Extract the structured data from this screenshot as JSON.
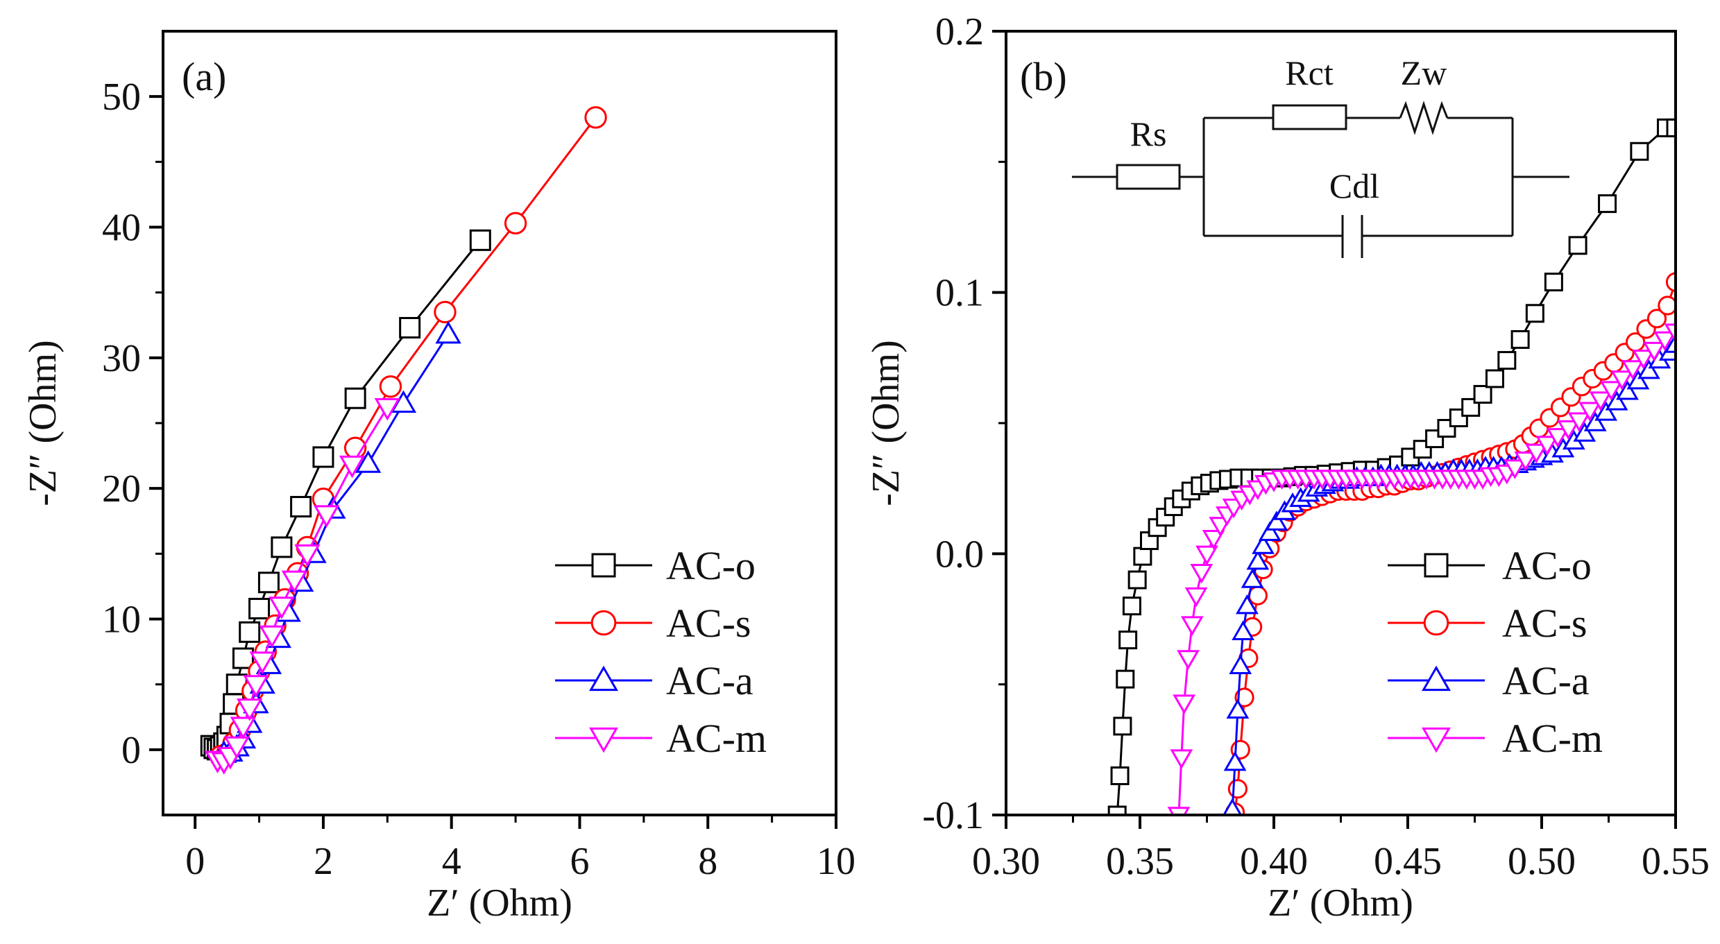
{
  "panels": [
    {
      "id": "a",
      "panel_label": "(a)",
      "xlabel": "Z′ (Ohm)",
      "ylabel": "-Z″ (Ohm)"
    },
    {
      "id": "b",
      "panel_label": "(b)",
      "xlabel": "Z′ (Ohm)",
      "ylabel": "-Z″ (Ohm)",
      "circuit": {
        "rs": "Rs",
        "rct": "Rct",
        "zw": "Zw",
        "cdl": "Cdl"
      }
    }
  ],
  "chart_data": [
    {
      "type": "line",
      "panel": "(a)",
      "xlabel": "Z′ (Ohm)",
      "ylabel": "-Z″ (Ohm)",
      "xlim": [
        -0.5,
        10
      ],
      "ylim": [
        -5,
        55
      ],
      "xticks": [
        0,
        2,
        4,
        6,
        8,
        10
      ],
      "yticks": [
        0,
        10,
        20,
        30,
        40,
        50
      ],
      "xtick_labels": [
        "0",
        "2",
        "4",
        "6",
        "8",
        "10"
      ],
      "ytick_labels": [
        "0",
        "10",
        "20",
        "30",
        "40",
        "50"
      ],
      "legend_position": "bottom-right",
      "series": [
        {
          "name": "AC-o",
          "color": "#000000",
          "marker": "square",
          "x": [
            0.25,
            0.3,
            0.35,
            0.4,
            0.45,
            0.5,
            0.55,
            0.6,
            0.65,
            0.75,
            0.85,
            1.0,
            1.15,
            1.35,
            1.65,
            2.0,
            2.5,
            3.35,
            4.45
          ],
          "y": [
            0.3,
            0.1,
            0.0,
            0.2,
            0.5,
            1.0,
            2.0,
            3.5,
            5.0,
            7.0,
            9.0,
            10.8,
            12.8,
            15.5,
            18.6,
            22.4,
            26.9,
            32.3,
            39.0
          ]
        },
        {
          "name": "AC-s",
          "color": "#ff0000",
          "marker": "circle",
          "x": [
            0.4,
            0.5,
            0.6,
            0.7,
            0.8,
            0.9,
            1.0,
            1.1,
            1.25,
            1.4,
            1.6,
            1.75,
            2.0,
            2.5,
            3.05,
            3.9,
            5.0,
            6.25
          ],
          "y": [
            -0.5,
            -0.3,
            0.5,
            1.5,
            3.0,
            4.5,
            6.0,
            7.5,
            9.5,
            11.5,
            13.5,
            15.5,
            19.2,
            23.1,
            27.8,
            33.5,
            40.3,
            48.4
          ]
        },
        {
          "name": "AC-a",
          "color": "#0000ff",
          "marker": "triangle-up",
          "x": [
            0.45,
            0.55,
            0.65,
            0.75,
            0.85,
            0.95,
            1.05,
            1.15,
            1.3,
            1.45,
            1.65,
            1.85,
            2.15,
            2.7,
            3.25,
            3.95
          ],
          "y": [
            -0.3,
            -0.2,
            0.2,
            0.8,
            2.0,
            3.5,
            5.0,
            6.5,
            8.5,
            10.5,
            12.8,
            15.0,
            18.4,
            21.9,
            26.5,
            31.8
          ]
        },
        {
          "name": "AC-m",
          "color": "#ff00ff",
          "marker": "triangle-down",
          "x": [
            0.35,
            0.45,
            0.55,
            0.65,
            0.75,
            0.85,
            0.95,
            1.05,
            1.2,
            1.35,
            1.55,
            1.75,
            2.05,
            2.45,
            3.0
          ],
          "y": [
            -0.8,
            -0.9,
            -0.5,
            0.3,
            1.8,
            3.2,
            5.0,
            6.8,
            8.8,
            11.0,
            13.0,
            15.0,
            18.0,
            21.8,
            26.2
          ]
        }
      ]
    },
    {
      "type": "line",
      "panel": "(b)",
      "xlabel": "Z′ (Ohm)",
      "ylabel": "-Z″ (Ohm)",
      "xlim": [
        0.3,
        0.55
      ],
      "ylim": [
        -0.1,
        0.2
      ],
      "xticks": [
        0.3,
        0.35,
        0.4,
        0.45,
        0.5,
        0.55
      ],
      "yticks": [
        -0.1,
        0.0,
        0.1,
        0.2
      ],
      "xtick_labels": [
        "0.30",
        "0.35",
        "0.40",
        "0.45",
        "0.50",
        "0.55"
      ],
      "ytick_labels": [
        "-0.1",
        "0.0",
        "0.1",
        "0.2"
      ],
      "legend_position": "bottom-right",
      "series": [
        {
          "name": "AC-o",
          "color": "#000000",
          "marker": "square",
          "x": [
            0.3415,
            0.3425,
            0.3435,
            0.3445,
            0.3455,
            0.347,
            0.349,
            0.351,
            0.3535,
            0.3565,
            0.3595,
            0.3625,
            0.3655,
            0.369,
            0.3725,
            0.376,
            0.3795,
            0.383,
            0.387,
            0.391,
            0.395,
            0.399,
            0.403,
            0.407,
            0.411,
            0.415,
            0.4195,
            0.424,
            0.4285,
            0.433,
            0.4375,
            0.442,
            0.4465,
            0.451,
            0.4555,
            0.46,
            0.4645,
            0.469,
            0.4735,
            0.478,
            0.4825,
            0.487,
            0.492,
            0.4975,
            0.5045,
            0.5135,
            0.5245,
            0.5365,
            0.5465,
            0.55
          ],
          "y": [
            -0.1,
            -0.085,
            -0.066,
            -0.048,
            -0.033,
            -0.02,
            -0.01,
            -0.001,
            0.005,
            0.01,
            0.014,
            0.018,
            0.021,
            0.024,
            0.026,
            0.027,
            0.028,
            0.0285,
            0.029,
            0.029,
            0.029,
            0.029,
            0.029,
            0.0295,
            0.03,
            0.03,
            0.0305,
            0.031,
            0.0315,
            0.032,
            0.032,
            0.033,
            0.034,
            0.037,
            0.04,
            0.044,
            0.048,
            0.052,
            0.056,
            0.061,
            0.067,
            0.074,
            0.082,
            0.092,
            0.104,
            0.118,
            0.134,
            0.154,
            0.163,
            0.163
          ]
        },
        {
          "name": "AC-s",
          "color": "#ff0000",
          "marker": "circle",
          "x": [
            0.3855,
            0.3865,
            0.3875,
            0.389,
            0.3905,
            0.392,
            0.394,
            0.396,
            0.3985,
            0.401,
            0.4035,
            0.406,
            0.409,
            0.412,
            0.415,
            0.418,
            0.421,
            0.424,
            0.427,
            0.43,
            0.433,
            0.436,
            0.439,
            0.442,
            0.445,
            0.448,
            0.451,
            0.454,
            0.457,
            0.46,
            0.463,
            0.466,
            0.469,
            0.472,
            0.475,
            0.478,
            0.481,
            0.484,
            0.487,
            0.49,
            0.493,
            0.496,
            0.499,
            0.503,
            0.507,
            0.511,
            0.515,
            0.519,
            0.523,
            0.527,
            0.531,
            0.535,
            0.539,
            0.543,
            0.547,
            0.55
          ],
          "y": [
            -0.099,
            -0.09,
            -0.075,
            -0.055,
            -0.04,
            -0.028,
            -0.016,
            -0.006,
            0.002,
            0.008,
            0.012,
            0.016,
            0.018,
            0.02,
            0.021,
            0.022,
            0.023,
            0.024,
            0.024,
            0.024,
            0.024,
            0.025,
            0.025,
            0.026,
            0.026,
            0.027,
            0.028,
            0.028,
            0.029,
            0.03,
            0.031,
            0.032,
            0.033,
            0.034,
            0.035,
            0.036,
            0.037,
            0.038,
            0.039,
            0.04,
            0.042,
            0.045,
            0.048,
            0.052,
            0.056,
            0.06,
            0.064,
            0.067,
            0.07,
            0.073,
            0.077,
            0.081,
            0.086,
            0.09,
            0.095,
            0.104
          ]
        },
        {
          "name": "AC-a",
          "color": "#0000ff",
          "marker": "triangle-up",
          "x": [
            0.3845,
            0.3855,
            0.3865,
            0.3875,
            0.3885,
            0.39,
            0.392,
            0.394,
            0.396,
            0.3985,
            0.401,
            0.404,
            0.407,
            0.41,
            0.413,
            0.416,
            0.419,
            0.422,
            0.425,
            0.428,
            0.431,
            0.434,
            0.437,
            0.44,
            0.443,
            0.446,
            0.449,
            0.452,
            0.455,
            0.458,
            0.461,
            0.464,
            0.467,
            0.47,
            0.473,
            0.476,
            0.479,
            0.482,
            0.485,
            0.488,
            0.491,
            0.494,
            0.497,
            0.5,
            0.504,
            0.508,
            0.512,
            0.516,
            0.52,
            0.524,
            0.528,
            0.532,
            0.536,
            0.54,
            0.544,
            0.548,
            0.55
          ],
          "y": [
            -0.098,
            -0.08,
            -0.06,
            -0.043,
            -0.03,
            -0.02,
            -0.01,
            -0.003,
            0.003,
            0.008,
            0.012,
            0.016,
            0.019,
            0.021,
            0.023,
            0.025,
            0.026,
            0.027,
            0.028,
            0.028,
            0.029,
            0.029,
            0.029,
            0.03,
            0.03,
            0.03,
            0.03,
            0.03,
            0.031,
            0.031,
            0.031,
            0.031,
            0.032,
            0.032,
            0.032,
            0.032,
            0.033,
            0.033,
            0.033,
            0.034,
            0.034,
            0.035,
            0.036,
            0.037,
            0.038,
            0.04,
            0.043,
            0.046,
            0.05,
            0.054,
            0.058,
            0.062,
            0.066,
            0.07,
            0.074,
            0.077,
            0.08
          ]
        },
        {
          "name": "AC-m",
          "color": "#ff00ff",
          "marker": "triangle-down",
          "x": [
            0.3645,
            0.3655,
            0.3665,
            0.368,
            0.3695,
            0.371,
            0.373,
            0.375,
            0.3775,
            0.38,
            0.3825,
            0.385,
            0.388,
            0.391,
            0.394,
            0.397,
            0.4,
            0.403,
            0.406,
            0.409,
            0.412,
            0.415,
            0.418,
            0.421,
            0.424,
            0.427,
            0.43,
            0.433,
            0.436,
            0.439,
            0.442,
            0.445,
            0.448,
            0.451,
            0.454,
            0.457,
            0.46,
            0.463,
            0.466,
            0.469,
            0.472,
            0.475,
            0.478,
            0.481,
            0.484,
            0.487,
            0.49,
            0.494,
            0.498,
            0.502,
            0.506,
            0.51,
            0.514,
            0.518,
            0.522,
            0.526,
            0.53,
            0.534,
            0.538,
            0.542,
            0.546,
            0.55
          ],
          "y": [
            -0.1,
            -0.078,
            -0.057,
            -0.04,
            -0.027,
            -0.016,
            -0.007,
            0.0,
            0.006,
            0.011,
            0.015,
            0.018,
            0.021,
            0.023,
            0.025,
            0.027,
            0.028,
            0.029,
            0.029,
            0.029,
            0.029,
            0.029,
            0.029,
            0.029,
            0.029,
            0.029,
            0.029,
            0.029,
            0.029,
            0.029,
            0.029,
            0.029,
            0.029,
            0.029,
            0.029,
            0.029,
            0.029,
            0.029,
            0.029,
            0.029,
            0.029,
            0.029,
            0.029,
            0.03,
            0.03,
            0.031,
            0.033,
            0.036,
            0.039,
            0.042,
            0.045,
            0.048,
            0.051,
            0.055,
            0.059,
            0.063,
            0.067,
            0.071,
            0.075,
            0.078,
            0.082,
            0.085
          ]
        }
      ]
    }
  ]
}
